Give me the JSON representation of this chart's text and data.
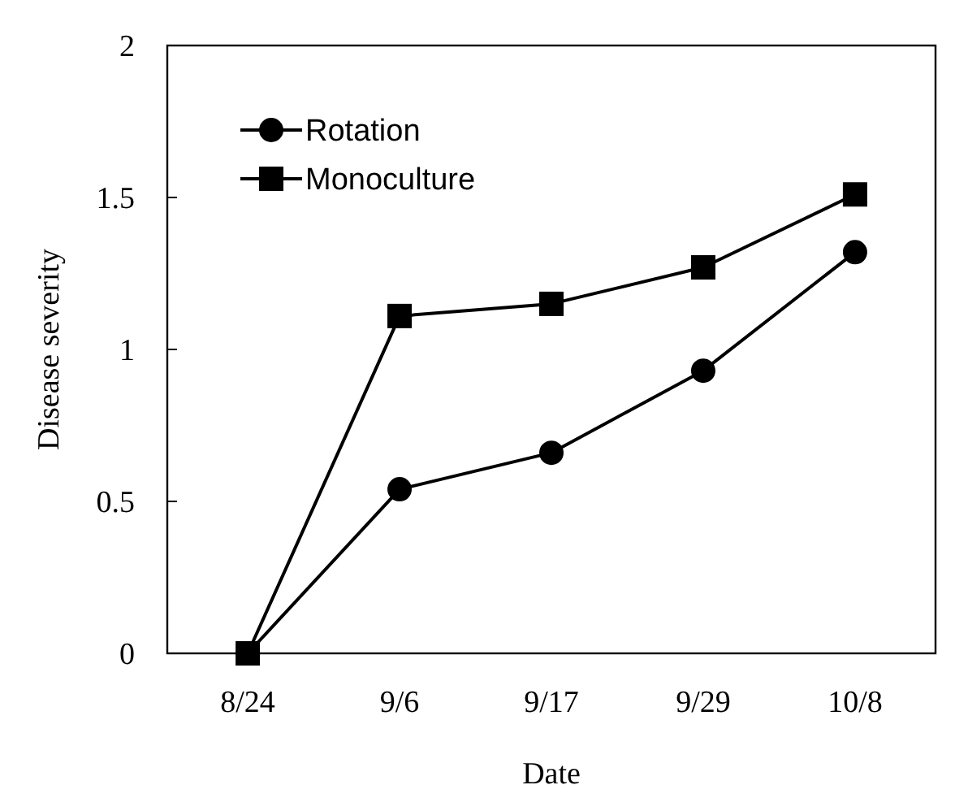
{
  "chart_data": {
    "type": "line",
    "xlabel": "Date",
    "ylabel": "Disease severity",
    "categories": [
      "8/24",
      "9/6",
      "9/17",
      "9/29",
      "10/8"
    ],
    "series": [
      {
        "name": "Rotation",
        "color": "#000000",
        "marker": "circle",
        "values": [
          0,
          0.54,
          0.66,
          0.93,
          1.32
        ]
      },
      {
        "name": "Monoculture",
        "color": "#000000",
        "marker": "square",
        "values": [
          0,
          1.11,
          1.15,
          1.27,
          1.51
        ]
      }
    ],
    "ylim": [
      0,
      2
    ],
    "yticks": [
      0,
      0.5,
      1,
      1.5,
      2
    ],
    "grid": false,
    "legend": "top left",
    "line_style": "solid"
  }
}
